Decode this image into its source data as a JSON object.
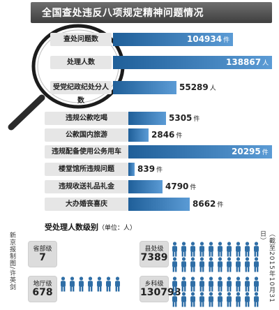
{
  "header": {
    "title": "全国查处违反八项规定精神问题情况"
  },
  "chart_data": [
    {
      "type": "bar",
      "title": "全国查处违反八项规定精神问题情况",
      "categories": [
        "查处问题数",
        "处理人数",
        "受党纪政纪处分人数"
      ],
      "series": [
        {
          "values": [
            104934,
            138867,
            55289
          ]
        }
      ],
      "units": [
        "件",
        "人",
        "人"
      ],
      "value_labels": [
        "104934",
        "138867",
        "55289"
      ]
    },
    {
      "type": "bar",
      "categories": [
        "违规公款吃喝",
        "公款国内旅游",
        "违规配备使用公务用车",
        "楼堂馆所违规问题",
        "违规收送礼品礼金",
        "大办婚丧喜庆"
      ],
      "series": [
        {
          "values": [
            5305,
            2846,
            20295,
            839,
            4790,
            8662
          ]
        }
      ],
      "units": [
        "件",
        "件",
        "件",
        "件",
        "件",
        "件"
      ],
      "value_labels": [
        "5305",
        "2846",
        "20295",
        "839",
        "4790",
        "8662"
      ]
    },
    {
      "type": "table",
      "title": "受处理人数级别",
      "subtitle": "（单位：人）",
      "categories": [
        "省部级",
        "地厅级",
        "县处级",
        "乡科级"
      ],
      "values": [
        7,
        678,
        7389,
        130798
      ],
      "value_labels": [
        "7",
        "678",
        "7389",
        "130798"
      ]
    }
  ],
  "levels_section": {
    "title": "受处理人数级别",
    "unit_note": "（单位：人）"
  },
  "side_notes": {
    "left": "新京报制图/许英剑",
    "right": "（截至2015年10月31日）"
  },
  "colors": {
    "bar_dark": "#1f5f99",
    "bar_light": "#5b9bd5",
    "label_bg": "#e6e6e6",
    "icon": "#2f6ea6",
    "header": "#4a4a4a"
  },
  "icons": [
    "magnifier-icon",
    "person-icon"
  ]
}
